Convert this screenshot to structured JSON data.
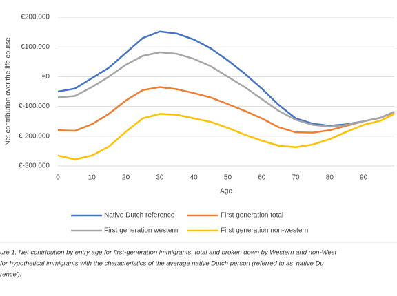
{
  "chart_data": {
    "type": "line",
    "ylabel": "Net contribution over the life course",
    "xlabel": "Age",
    "x": [
      0,
      5,
      10,
      15,
      20,
      25,
      30,
      35,
      40,
      45,
      50,
      55,
      60,
      65,
      70,
      75,
      80,
      85,
      90,
      95,
      99
    ],
    "series": [
      {
        "name": "Native Dutch reference",
        "color": "#4472c4",
        "values": [
          -50000,
          -40000,
          -5000,
          30000,
          80000,
          130000,
          152000,
          145000,
          125000,
          95000,
          55000,
          10000,
          -40000,
          -95000,
          -140000,
          -158000,
          -165000,
          -160000,
          -150000,
          -138000,
          -118000
        ]
      },
      {
        "name": "First generation total",
        "color": "#ed7d31",
        "values": [
          -180000,
          -182000,
          -160000,
          -125000,
          -80000,
          -45000,
          -35000,
          -42000,
          -55000,
          -70000,
          -92000,
          -115000,
          -140000,
          -170000,
          -187000,
          -188000,
          -180000,
          -165000,
          -150000,
          -138000,
          -120000
        ]
      },
      {
        "name": "First generation western",
        "color": "#a5a5a5",
        "values": [
          -70000,
          -65000,
          -35000,
          0,
          40000,
          70000,
          82000,
          77000,
          60000,
          35000,
          0,
          -35000,
          -75000,
          -115000,
          -145000,
          -162000,
          -168000,
          -162000,
          -150000,
          -138000,
          -118000
        ]
      },
      {
        "name": "First generation non-western",
        "color": "#ffc000",
        "values": [
          -265000,
          -278000,
          -265000,
          -235000,
          -185000,
          -140000,
          -125000,
          -128000,
          -140000,
          -152000,
          -172000,
          -195000,
          -215000,
          -232000,
          -237000,
          -228000,
          -210000,
          -185000,
          -162000,
          -148000,
          -125000
        ]
      }
    ],
    "xlim": [
      0,
      99
    ],
    "xticks": [
      0,
      10,
      20,
      30,
      40,
      50,
      60,
      70,
      80,
      90
    ],
    "ylim": [
      -300000,
      200000
    ],
    "yticks": [
      {
        "value": -300000,
        "label": "€-300.000"
      },
      {
        "value": -200000,
        "label": "€-200.000"
      },
      {
        "value": -100000,
        "label": "€-100.000"
      },
      {
        "value": 0,
        "label": "€0"
      },
      {
        "value": 100000,
        "label": "€100.000"
      },
      {
        "value": 200000,
        "label": "€200.000"
      }
    ],
    "grid": true,
    "caption": [
      "ure 1. Net contribution by entry age for first-generation immigrants, total and broken down by Western and non-West",
      " for hypothetical immigrants with the characteristics of the average native Dutch person (referred to as 'native Du",
      "rence')."
    ]
  }
}
